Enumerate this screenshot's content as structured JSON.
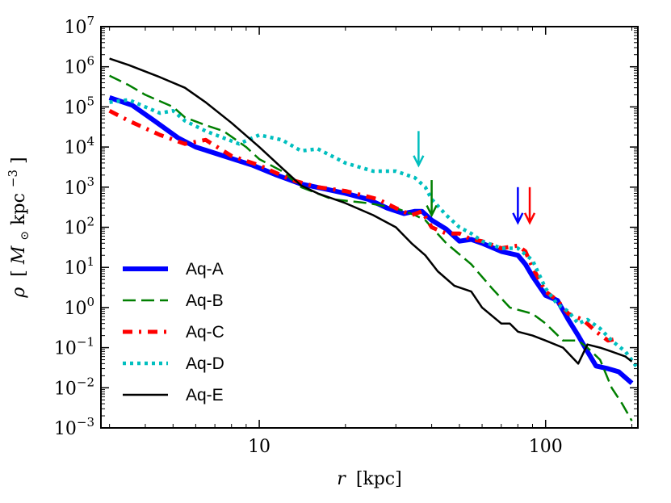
{
  "chart_data": {
    "type": "line",
    "xscale": "log",
    "yscale": "log",
    "xlim": [
      2.8,
      210
    ],
    "ylim": [
      0.001,
      10000000
    ],
    "xlabel": "r [kpc]",
    "xlabel_parts": {
      "var": "r",
      "unit": "[kpc]"
    },
    "ylabel": "ρ [M⊙kpc⁻³]",
    "ylabel_parts": {
      "var": "ρ",
      "bracket_open": "[",
      "m": "M",
      "sun": "⊙",
      "kpc": "kpc",
      "exp": "−3",
      "bracket_close": "]"
    },
    "x_ticks": [
      {
        "value": 10,
        "label": "10"
      },
      {
        "value": 100,
        "label": "100"
      }
    ],
    "y_ticks": [
      {
        "value": 0.001,
        "base": "10",
        "exp": "−3"
      },
      {
        "value": 0.01,
        "base": "10",
        "exp": "−2"
      },
      {
        "value": 0.1,
        "base": "10",
        "exp": "−1"
      },
      {
        "value": 1,
        "base": "10",
        "exp": "0"
      },
      {
        "value": 10,
        "base": "10",
        "exp": "1"
      },
      {
        "value": 100,
        "base": "10",
        "exp": "2"
      },
      {
        "value": 1000,
        "base": "10",
        "exp": "3"
      },
      {
        "value": 10000,
        "base": "10",
        "exp": "4"
      },
      {
        "value": 100000,
        "base": "10",
        "exp": "5"
      },
      {
        "value": 1000000,
        "base": "10",
        "exp": "6"
      },
      {
        "value": 10000000,
        "base": "10",
        "exp": "7"
      }
    ],
    "legend_position": "lower-left",
    "series": [
      {
        "name": "Aq-A",
        "color": "#0000ff",
        "style": "solid-thick",
        "x": [
          3.0,
          3.6,
          4.3,
          5.2,
          6.0,
          7.5,
          9.5,
          11.5,
          14,
          17,
          20,
          24,
          28,
          32,
          35,
          37,
          40,
          45,
          50,
          55,
          60,
          70,
          80,
          85,
          90,
          100,
          110,
          120,
          130,
          140,
          150,
          165,
          180,
          200
        ],
        "y": [
          170000,
          110000,
          45000,
          17000,
          10000,
          6000,
          3500,
          2000,
          1200,
          900,
          700,
          500,
          300,
          220,
          250,
          250,
          150,
          90,
          45,
          50,
          40,
          25,
          20,
          12,
          6,
          2,
          1.5,
          0.5,
          0.2,
          0.08,
          0.035,
          0.03,
          0.025,
          0.013
        ]
      },
      {
        "name": "Aq-B",
        "color": "#007f00",
        "style": "dashed",
        "x": [
          3.0,
          3.5,
          4.0,
          5.0,
          5.5,
          6.5,
          7.5,
          9,
          10,
          12,
          14,
          18,
          24,
          30,
          35,
          38,
          40,
          45,
          55,
          65,
          75,
          90,
          100,
          115,
          130,
          140,
          155,
          170,
          185,
          200
        ],
        "y": [
          600000,
          350000,
          200000,
          100000,
          55000,
          35000,
          25000,
          10000,
          5000,
          2500,
          1000,
          500,
          400,
          300,
          200,
          150,
          100,
          40,
          12,
          3,
          1,
          0.7,
          0.4,
          0.15,
          0.15,
          0.1,
          0.05,
          0.01,
          0.004,
          0.0015
        ]
      },
      {
        "name": "Aq-C",
        "color": "#ff0000",
        "style": "dashdot",
        "x": [
          3.0,
          3.5,
          4.5,
          5.5,
          6.5,
          8,
          10,
          13,
          16,
          20,
          26,
          30,
          34,
          37,
          40,
          45,
          50,
          55,
          60,
          70,
          80,
          85,
          90,
          100,
          110,
          120,
          135,
          150,
          165,
          180
        ],
        "y": [
          80000,
          45000,
          20000,
          12000,
          15000,
          6000,
          3500,
          1500,
          1000,
          800,
          500,
          300,
          200,
          250,
          100,
          70,
          70,
          50,
          45,
          30,
          35,
          25,
          10,
          2.5,
          1.5,
          0.7,
          0.5,
          0.25,
          0.15,
          0.17
        ]
      },
      {
        "name": "Aq-D",
        "color": "#00bfbf",
        "style": "dotted",
        "x": [
          3.0,
          3.5,
          4.0,
          4.5,
          5.0,
          5.5,
          6.5,
          8.5,
          10,
          12,
          14,
          16,
          20,
          25,
          30,
          35,
          38,
          40,
          45,
          50,
          55,
          60,
          70,
          80,
          90,
          100,
          110,
          120,
          130,
          140,
          155,
          170,
          190,
          210
        ],
        "y": [
          130000,
          150000,
          100000,
          70000,
          80000,
          45000,
          25000,
          12000,
          20000,
          15000,
          8000,
          9000,
          4000,
          2500,
          2500,
          1700,
          1000,
          500,
          200,
          100,
          70,
          45,
          30,
          30,
          15,
          3,
          1.2,
          0.8,
          0.4,
          0.5,
          0.3,
          0.15,
          0.08,
          0.03
        ]
      },
      {
        "name": "Aq-E",
        "color": "#000000",
        "style": "solid-thin",
        "x": [
          3.0,
          3.5,
          4.5,
          5.5,
          6.5,
          8,
          10,
          12,
          14,
          16,
          20,
          25,
          30,
          34,
          38,
          42,
          48,
          55,
          60,
          70,
          75,
          80,
          90,
          100,
          115,
          130,
          140,
          155,
          170,
          190,
          200
        ],
        "y": [
          1600000,
          1100000,
          550000,
          300000,
          130000,
          40000,
          10000,
          3000,
          1100,
          700,
          400,
          200,
          100,
          40,
          20,
          8,
          3.5,
          2.5,
          1,
          0.4,
          0.4,
          0.25,
          0.2,
          0.15,
          0.1,
          0.04,
          0.12,
          0.1,
          0.08,
          0.06,
          0.045
        ]
      }
    ],
    "annotations": [
      {
        "type": "arrow",
        "x": 36,
        "y_from": 25000,
        "y_to": 3500,
        "color": "#00bfbf"
      },
      {
        "type": "arrow",
        "x": 40,
        "y_from": 1500,
        "y_to": 200,
        "color": "#007f00"
      },
      {
        "type": "arrow",
        "x": 80,
        "y_from": 1000,
        "y_to": 130,
        "color": "#0000ff"
      },
      {
        "type": "arrow",
        "x": 88,
        "y_from": 1000,
        "y_to": 130,
        "color": "#ff0000"
      }
    ]
  }
}
